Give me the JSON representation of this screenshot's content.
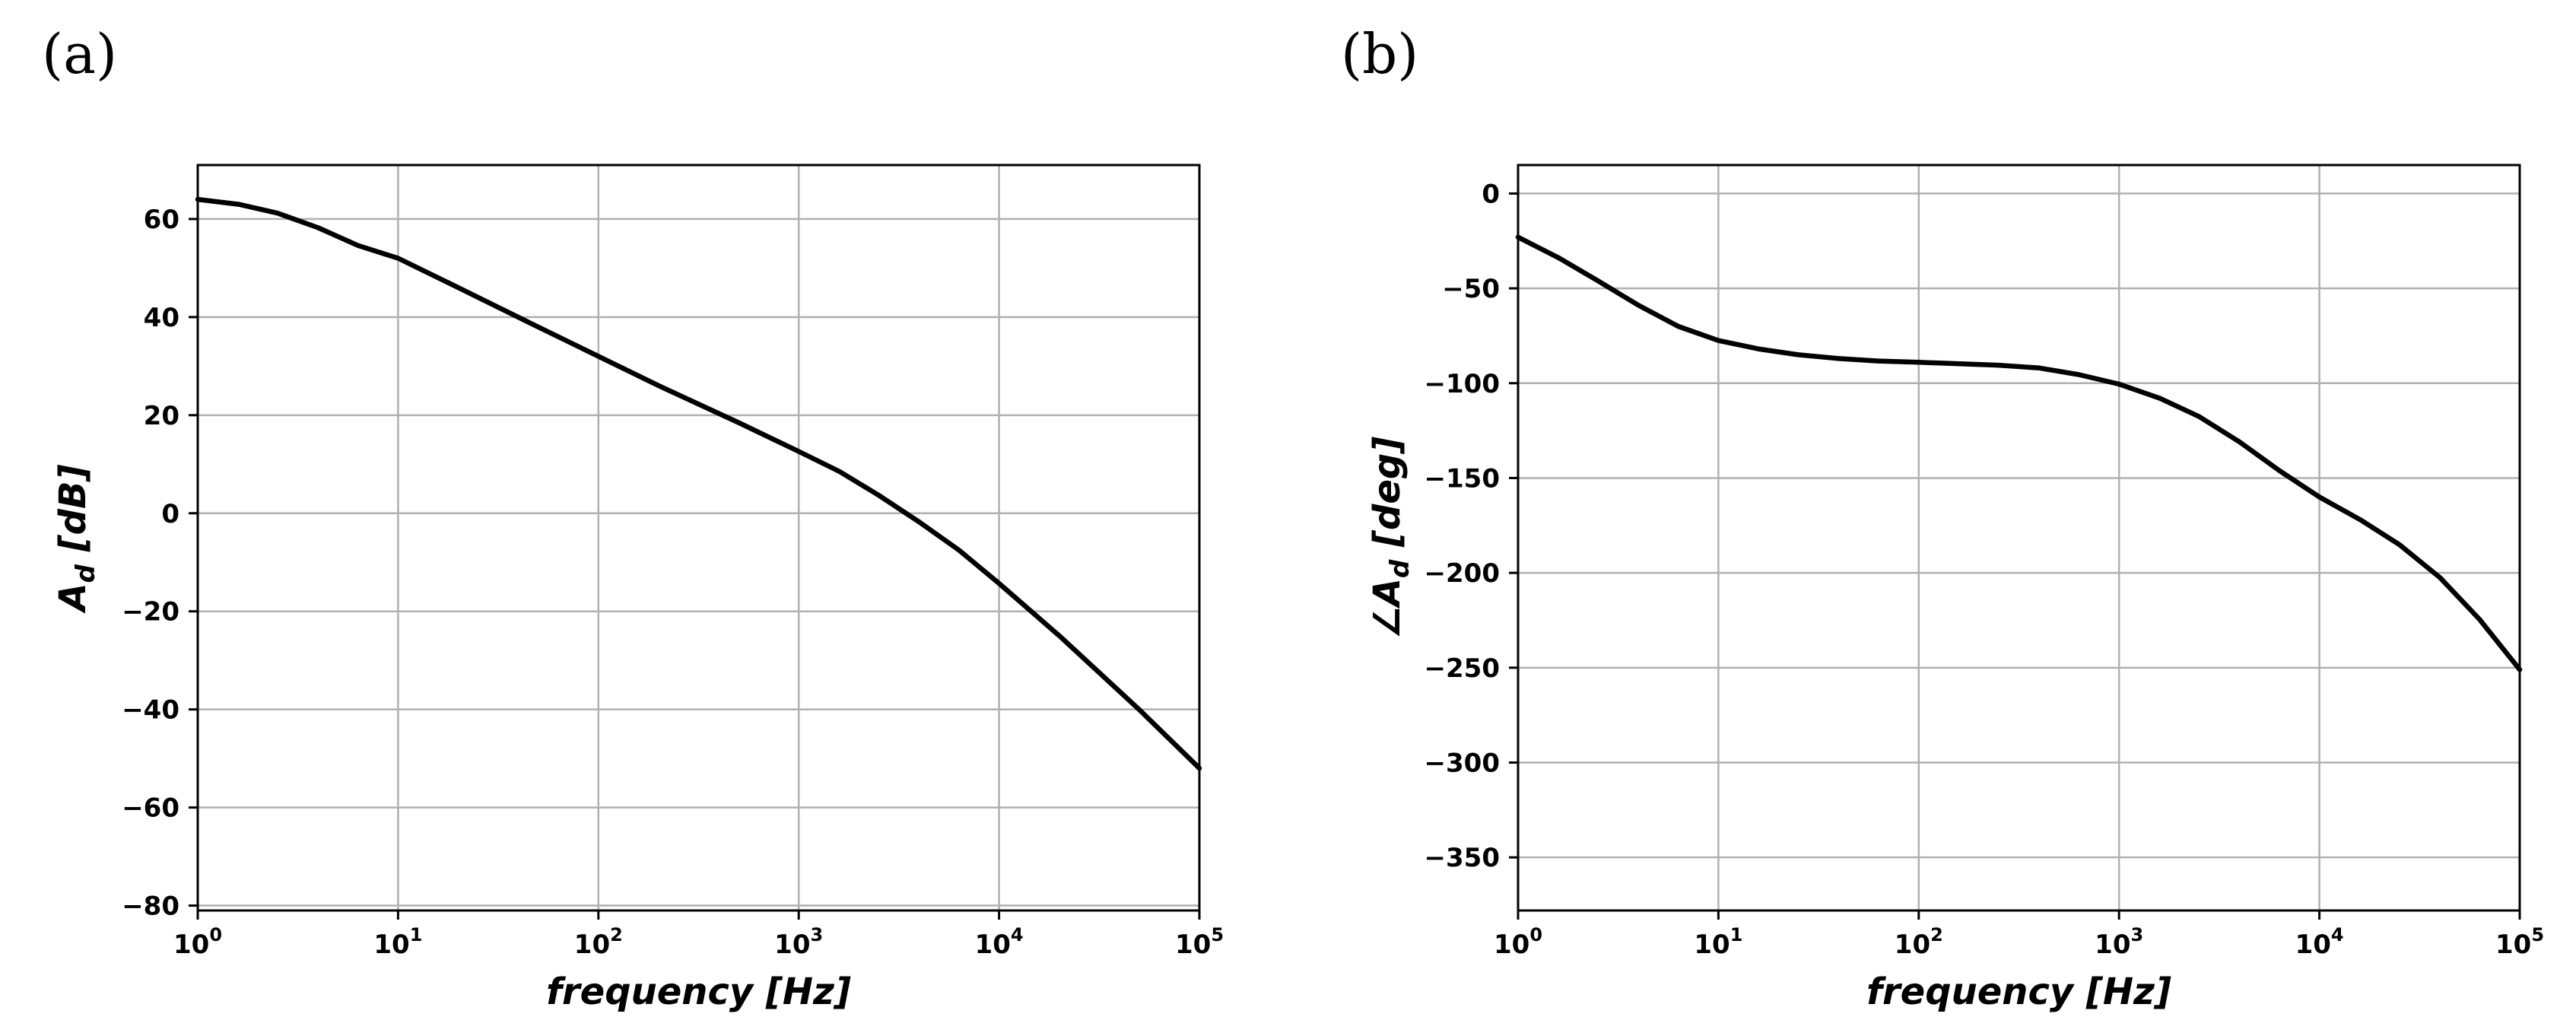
{
  "chart_data": [
    {
      "type": "line",
      "panel_label": "(a)",
      "xlabel": "frequency [Hz]",
      "ylabel": "A_d [dB]",
      "ylabel_main": "A",
      "ylabel_sub": "d",
      "ylabel_unit": "[dB]",
      "xscale": "log",
      "xlim": [
        1,
        100000
      ],
      "ylim": [
        -81,
        71
      ],
      "grid": true,
      "x_ticks": [
        {
          "value": 1,
          "base": "10",
          "exp": "0"
        },
        {
          "value": 10,
          "base": "10",
          "exp": "1"
        },
        {
          "value": 100,
          "base": "10",
          "exp": "2"
        },
        {
          "value": 1000,
          "base": "10",
          "exp": "3"
        },
        {
          "value": 10000,
          "base": "10",
          "exp": "4"
        },
        {
          "value": 100000,
          "base": "10",
          "exp": "5"
        }
      ],
      "y_ticks": [
        {
          "value": 60,
          "label": "60"
        },
        {
          "value": 40,
          "label": "40"
        },
        {
          "value": 20,
          "label": "20"
        },
        {
          "value": 0,
          "label": "0"
        },
        {
          "value": -20,
          "label": "−20"
        },
        {
          "value": -40,
          "label": "−40"
        },
        {
          "value": -60,
          "label": "−60"
        },
        {
          "value": -80,
          "label": "−80"
        }
      ],
      "series": [
        {
          "name": "A_d",
          "x": [
            1,
            1.6,
            2.5,
            4,
            6.3,
            10,
            20,
            50,
            100,
            200,
            500,
            1000,
            1600,
            2500,
            4000,
            6300,
            10000,
            20000,
            50000,
            100000
          ],
          "y": [
            64,
            63,
            61.2,
            58.2,
            54.6,
            52,
            46,
            38,
            32,
            26,
            18.5,
            12.6,
            8.5,
            3.7,
            -1.8,
            -7.5,
            -14.3,
            -25,
            -40,
            -52
          ]
        }
      ]
    },
    {
      "type": "line",
      "panel_label": "(b)",
      "xlabel": "frequency [Hz]",
      "ylabel": "∠A_d [deg]",
      "ylabel_main": "∠A",
      "ylabel_sub": "d",
      "ylabel_unit": "[deg]",
      "xscale": "log",
      "xlim": [
        1,
        100000
      ],
      "ylim": [
        -378,
        15
      ],
      "grid": true,
      "x_ticks": [
        {
          "value": 1,
          "base": "10",
          "exp": "0"
        },
        {
          "value": 10,
          "base": "10",
          "exp": "1"
        },
        {
          "value": 100,
          "base": "10",
          "exp": "2"
        },
        {
          "value": 1000,
          "base": "10",
          "exp": "3"
        },
        {
          "value": 10000,
          "base": "10",
          "exp": "4"
        },
        {
          "value": 100000,
          "base": "10",
          "exp": "5"
        }
      ],
      "y_ticks": [
        {
          "value": 0,
          "label": "0"
        },
        {
          "value": -50,
          "label": "−50"
        },
        {
          "value": -100,
          "label": "−100"
        },
        {
          "value": -150,
          "label": "−150"
        },
        {
          "value": -200,
          "label": "−200"
        },
        {
          "value": -250,
          "label": "−250"
        },
        {
          "value": -300,
          "label": "−300"
        },
        {
          "value": -350,
          "label": "−350"
        }
      ],
      "series": [
        {
          "name": "∠A_d",
          "x": [
            1,
            1.6,
            2.5,
            4,
            6.3,
            10,
            16,
            25,
            40,
            63,
            100,
            250,
            400,
            630,
            1000,
            1600,
            2500,
            4000,
            6300,
            10000,
            16000,
            25000,
            40000,
            63000,
            100000
          ],
          "y": [
            -23,
            -34,
            -46,
            -59,
            -70,
            -77.5,
            -82,
            -85,
            -87,
            -88.3,
            -89,
            -90.5,
            -92,
            -95.5,
            -100.5,
            -108,
            -117.5,
            -131,
            -146,
            -160,
            -172,
            -185,
            -202.5,
            -224.5,
            -251
          ]
        }
      ]
    }
  ]
}
